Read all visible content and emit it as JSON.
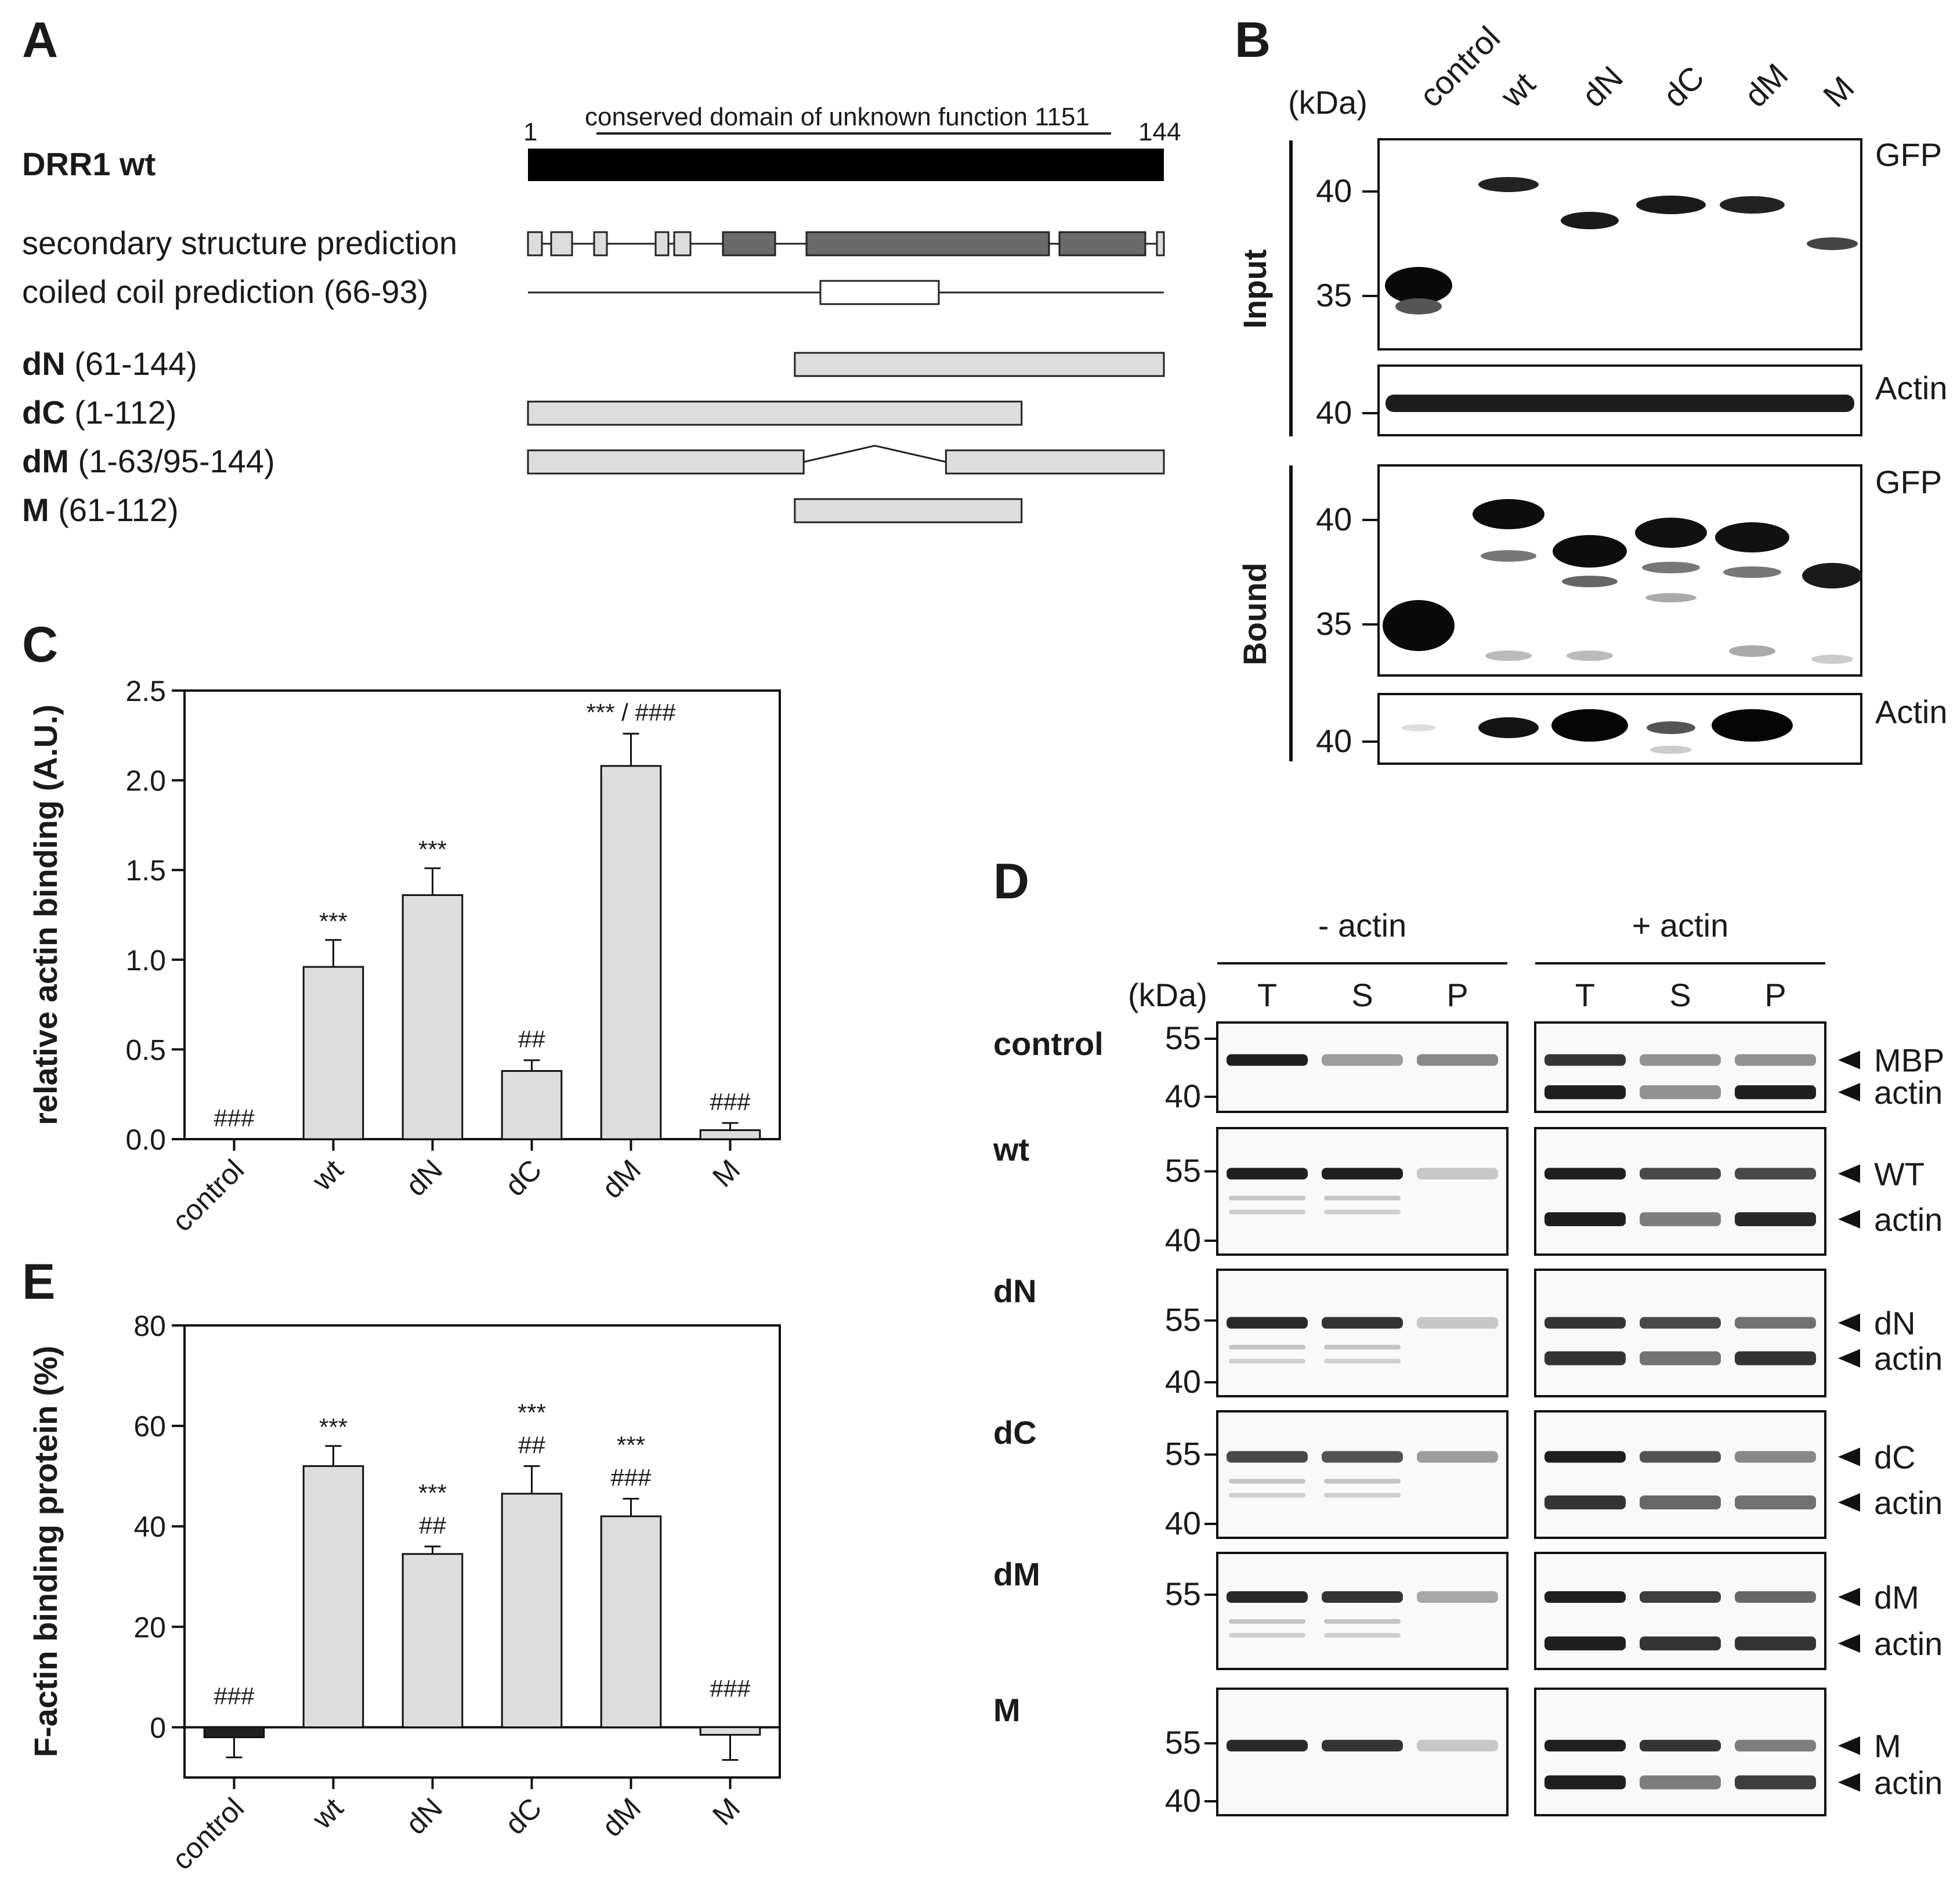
{
  "panelA": {
    "label": "A",
    "start": "1",
    "end": "144",
    "domain_note": "conserved domain of unknown function 1151",
    "rows": [
      {
        "bold": "DRR1 wt",
        "rest": "",
        "kind": "full"
      },
      {
        "bold": "",
        "rest": "secondary structure prediction",
        "kind": "ss"
      },
      {
        "bold": "",
        "rest": "coiled coil prediction (66-93)",
        "kind": "cc"
      },
      {
        "bold": "dN",
        "rest": " (61-144)",
        "kind": "bar",
        "from": 61,
        "to": 144
      },
      {
        "bold": "dC",
        "rest": " (1-112)",
        "kind": "bar",
        "from": 1,
        "to": 112
      },
      {
        "bold": "dM",
        "rest": " (1-63/95-144)",
        "kind": "split",
        "from": 1,
        "to": 63,
        "from2": 95,
        "to2": 144
      },
      {
        "bold": "M",
        "rest": " (61-112)",
        "kind": "bar",
        "from": 61,
        "to": 112
      }
    ]
  },
  "panelB": {
    "label": "B",
    "unit": "(kDa)",
    "lanes": [
      "control",
      "wt",
      "dN",
      "dC",
      "dM",
      "M"
    ],
    "input_label": "Input",
    "bound_label": "Bound",
    "gfp_label": "GFP",
    "actin_label": "Actin",
    "markers": {
      "m40": "40",
      "m35": "35"
    }
  },
  "panelC": {
    "label": "C",
    "chart_data": {
      "type": "bar",
      "categories": [
        "control",
        "wt",
        "dN",
        "dC",
        "dM",
        "M"
      ],
      "values": [
        0.0,
        0.96,
        1.36,
        0.38,
        2.08,
        0.05
      ],
      "errors": [
        0.0,
        0.15,
        0.15,
        0.06,
        0.18,
        0.04
      ],
      "annotations_top": [
        "",
        "***",
        "***",
        "",
        "",
        ""
      ],
      "annotations_bottom": [
        "###",
        "",
        "",
        "##",
        "*** / ###",
        "###"
      ],
      "ylabel": "relative actin binding (A.U.)",
      "ylim": [
        0,
        2.5
      ],
      "yticks": [
        "0.0",
        "0.5",
        "1.0",
        "1.5",
        "2.0",
        "2.5"
      ]
    }
  },
  "panelD": {
    "label": "D",
    "unit": "(kDa)",
    "minus_actin": "- actin",
    "plus_actin": "+ actin",
    "lanes": [
      "T",
      "S",
      "P"
    ],
    "rows": [
      {
        "name": "control",
        "markers": [
          "55",
          "40"
        ],
        "right": [
          "MBP",
          "actin"
        ]
      },
      {
        "name": "wt",
        "markers": [
          "55",
          "40"
        ],
        "right": [
          "WT",
          "actin"
        ]
      },
      {
        "name": "dN",
        "markers": [
          "55",
          "40"
        ],
        "right": [
          "dN",
          "actin"
        ]
      },
      {
        "name": "dC",
        "markers": [
          "55",
          "40"
        ],
        "right": [
          "dC",
          "actin"
        ]
      },
      {
        "name": "dM",
        "markers": [
          "55"
        ],
        "right": [
          "dM",
          "actin"
        ]
      },
      {
        "name": "M",
        "markers": [
          "55",
          "40"
        ],
        "right": [
          "M",
          "actin"
        ]
      }
    ]
  },
  "panelE": {
    "label": "E",
    "chart_data": {
      "type": "bar",
      "categories": [
        "control",
        "wt",
        "dN",
        "dC",
        "dM",
        "M"
      ],
      "values": [
        -2,
        52,
        34.5,
        46.5,
        42,
        -1.5
      ],
      "errors": [
        4,
        4,
        1.5,
        5.5,
        3.5,
        5
      ],
      "annotations_top": [
        "",
        "***",
        "***",
        "***",
        "***",
        ""
      ],
      "annotations_bottom": [
        "###",
        "",
        "##",
        "##",
        "###",
        "###"
      ],
      "ylabel": "F-actin binding protein (%)",
      "ylim": [
        -10,
        80
      ],
      "yticks": [
        "0",
        "20",
        "40",
        "60",
        "80"
      ]
    }
  }
}
